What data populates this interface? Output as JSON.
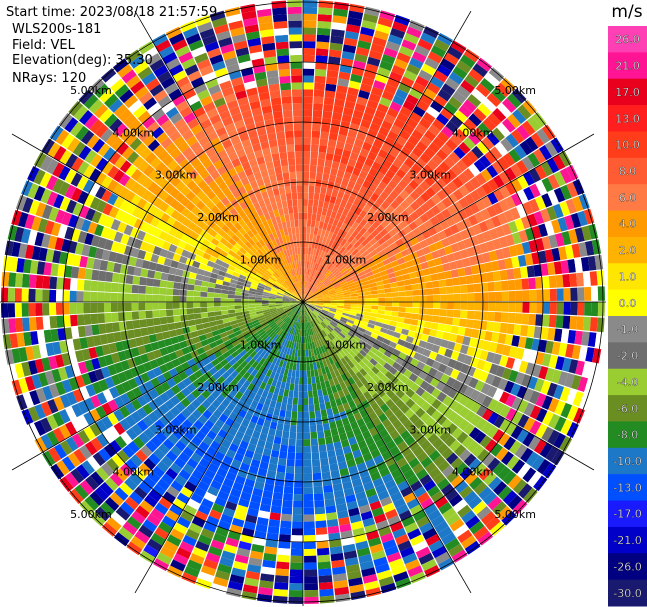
{
  "info": {
    "start_time": "Start time: 2023/08/18 21:57:59",
    "instrument": "WLS200s-181",
    "field": "Field: VEL",
    "elevation": "Elevation(deg): 35.30",
    "nrays": "NRays: 120"
  },
  "colorbar": {
    "unit": "m/s",
    "ticks": [
      "26.0",
      "21.0",
      "17.0",
      "13.0",
      "10.0",
      "8.0",
      "6.0",
      "4.0",
      "2.0",
      "1.0",
      "0.0",
      "-1.0",
      "-2.0",
      "-4.0",
      "-6.0",
      "-8.0",
      "-10.0",
      "-13.0",
      "-17.0",
      "-21.0",
      "-26.0",
      "-30.0"
    ],
    "colors": [
      "#ff3fb4",
      "#ff1493",
      "#e8001c",
      "#ff1f1f",
      "#ff3d1a",
      "#ff5c33",
      "#ff7a45",
      "#ff9a00",
      "#ffb300",
      "#ffe600",
      "#ffff00",
      "#8a8a8a",
      "#6e6e6e",
      "#9acd32",
      "#6b8e23",
      "#228b22",
      "#1e78c8",
      "#0050ff",
      "#1a1aff",
      "#0000c8",
      "#000080",
      "#191970"
    ]
  },
  "chart_data": {
    "type": "polar-ppi",
    "field": "VEL",
    "units": "m/s",
    "n_rays": 120,
    "elevation_deg": 35.3,
    "range_rings_km": [
      1.0,
      2.0,
      3.0,
      4.0,
      5.0
    ],
    "ring_labels": [
      "1.00km",
      "2.00km",
      "3.00km",
      "4.00km",
      "5.00km"
    ],
    "max_range_km": 5.6,
    "color_scale_min": -30.0,
    "color_scale_max": 26.0
  }
}
